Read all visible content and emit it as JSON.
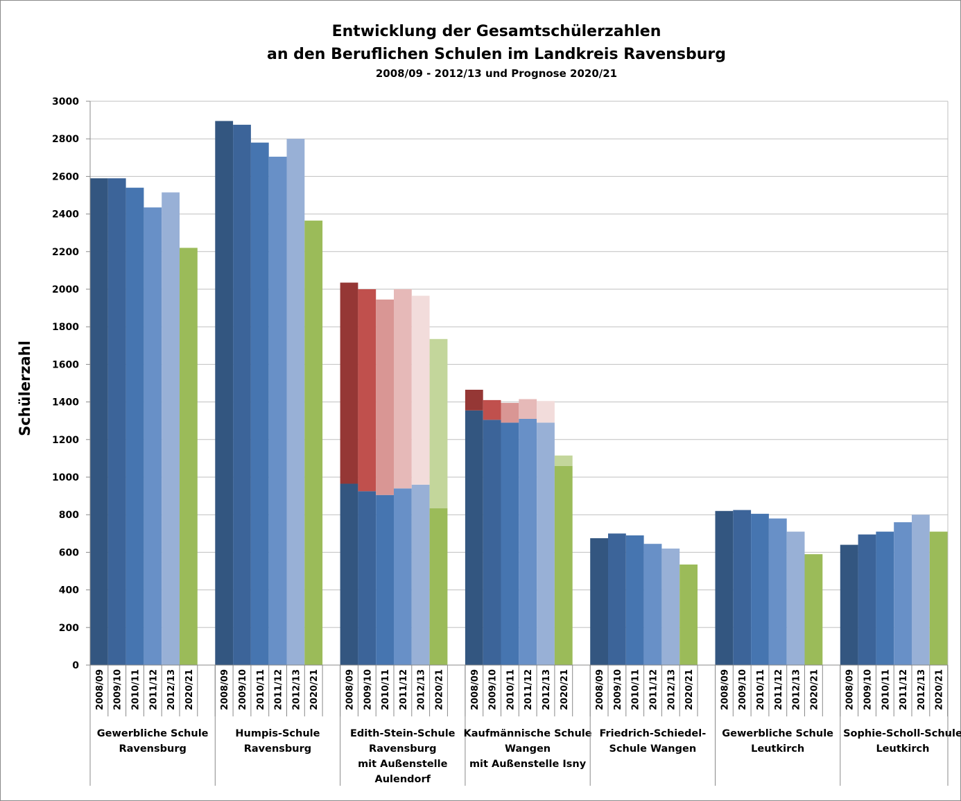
{
  "chart_data": {
    "type": "bar",
    "title": [
      "Entwicklung der Gesamtschülerzahlen",
      "an den Beruflichen Schulen im Landkreis Ravensburg"
    ],
    "subtitle": "2008/09 - 2012/13  und Prognose 2020/21",
    "y_label": "Schülerzahl",
    "ylim": [
      0,
      3000
    ],
    "yticks": [
      0,
      200,
      400,
      600,
      800,
      1000,
      1200,
      1400,
      1600,
      1800,
      2000,
      2200,
      2400,
      2600,
      2800,
      3000
    ],
    "grid": true,
    "categories": [
      "2008/09",
      "2009/10",
      "2010/11",
      "2011/12",
      "2012/13",
      "2020/21"
    ],
    "colors": [
      "#335680",
      "#3c6499",
      "#4675b0",
      "#6890c7",
      "#98b0d6",
      "#9bbb59"
    ],
    "top_colors": [
      "#953735",
      "#c0504d",
      "#d99694",
      "#e6b9b8",
      "#f2dcdb",
      "#c3d69b"
    ],
    "groups": [
      {
        "name": [
          "Gewerbliche Schule",
          "Ravensburg"
        ],
        "values": [
          2590,
          2590,
          2540,
          2435,
          2515,
          2220
        ]
      },
      {
        "name": [
          "Humpis-Schule",
          "Ravensburg"
        ],
        "values": [
          2895,
          2875,
          2780,
          2705,
          2800,
          2365
        ]
      },
      {
        "name": [
          "Edith-Stein-Schule",
          "Ravensburg",
          "mit Außenstelle",
          "Aulendorf"
        ],
        "values": [
          965,
          925,
          905,
          940,
          960,
          835
        ],
        "top_values": [
          1070,
          1075,
          1040,
          1060,
          1005,
          900
        ]
      },
      {
        "name": [
          "Kaufmännische Schule",
          "Wangen",
          "mit Außenstelle Isny"
        ],
        "values": [
          1355,
          1305,
          1290,
          1310,
          1290,
          1060
        ],
        "top_values": [
          110,
          105,
          105,
          105,
          115,
          55
        ]
      },
      {
        "name": [
          "Friedrich-Schiedel-",
          "Schule Wangen"
        ],
        "values": [
          675,
          700,
          690,
          645,
          620,
          535
        ]
      },
      {
        "name": [
          "Gewerbliche Schule",
          "Leutkirch"
        ],
        "values": [
          820,
          825,
          805,
          780,
          710,
          590
        ]
      },
      {
        "name": [
          "Sophie-Scholl-Schule",
          "Leutkirch"
        ],
        "values": [
          640,
          695,
          710,
          760,
          800,
          710
        ]
      }
    ]
  }
}
